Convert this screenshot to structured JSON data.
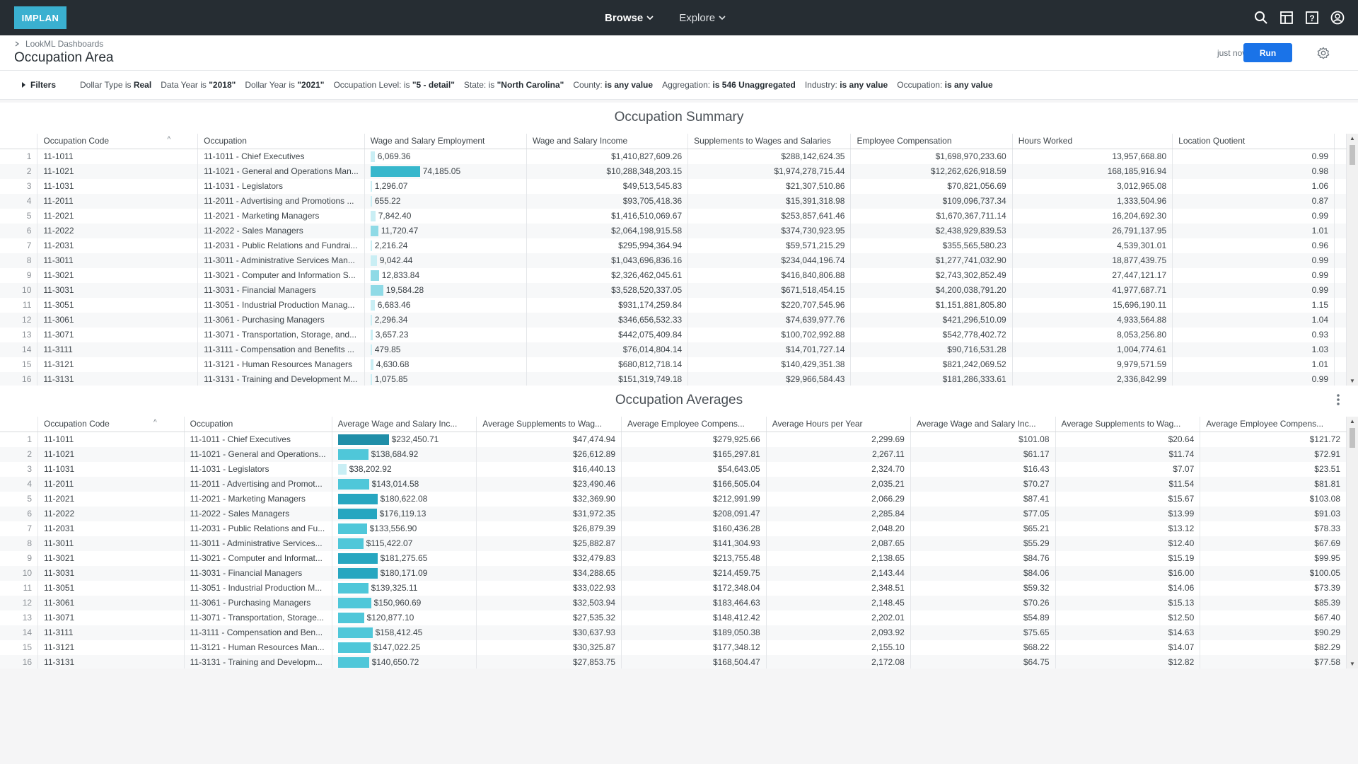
{
  "nav": {
    "logo": "IMPLAN",
    "browse": "Browse",
    "explore": "Explore"
  },
  "header": {
    "breadcrumb": "LookML Dashboards",
    "title": "Occupation Area",
    "last_run": "just now",
    "run_label": "Run"
  },
  "filters": {
    "toggle_label": "Filters",
    "items": [
      {
        "label": "Dollar Type is ",
        "value": "Real"
      },
      {
        "label": "Data Year is ",
        "value": "\"2018\""
      },
      {
        "label": "Dollar Year is ",
        "value": "\"2021\""
      },
      {
        "label": "Occupation Level: is ",
        "value": "\"5 - detail\""
      },
      {
        "label": "State: is ",
        "value": "\"North Carolina\""
      },
      {
        "label": "County: ",
        "value": "is any value"
      },
      {
        "label": "Aggregation: ",
        "value": "is 546 Unaggregated"
      },
      {
        "label": "Industry: ",
        "value": "is any value"
      },
      {
        "label": "Occupation: ",
        "value": "is any value"
      }
    ]
  },
  "summary": {
    "title": "Occupation Summary",
    "headers": [
      "Occupation Code",
      "Occupation",
      "Wage and Salary Employment",
      "Wage and Salary Income",
      "Supplements to Wages and Salaries",
      "Employee Compensation",
      "Hours Worked",
      "Location Quotient"
    ],
    "emp_max": 74185.05,
    "rows": [
      {
        "n": "1",
        "code": "11-1011",
        "occ": "11-1011 - Chief Executives",
        "emp": 6069.36,
        "emp_label": "6,069.36",
        "wsi": "$1,410,827,609.26",
        "sup": "$288,142,624.35",
        "comp": "$1,698,970,233.60",
        "hours": "13,957,668.80",
        "lq": "0.99"
      },
      {
        "n": "2",
        "code": "11-1021",
        "occ": "11-1021 - General and Operations Man...",
        "emp": 74185.05,
        "emp_label": "74,185.05",
        "wsi": "$10,288,348,203.15",
        "sup": "$1,974,278,715.44",
        "comp": "$12,262,626,918.59",
        "hours": "168,185,916.94",
        "lq": "0.98"
      },
      {
        "n": "3",
        "code": "11-1031",
        "occ": "11-1031 - Legislators",
        "emp": 1296.07,
        "emp_label": "1,296.07",
        "wsi": "$49,513,545.83",
        "sup": "$21,307,510.86",
        "comp": "$70,821,056.69",
        "hours": "3,012,965.08",
        "lq": "1.06"
      },
      {
        "n": "4",
        "code": "11-2011",
        "occ": "11-2011 - Advertising and Promotions ...",
        "emp": 655.22,
        "emp_label": "655.22",
        "wsi": "$93,705,418.36",
        "sup": "$15,391,318.98",
        "comp": "$109,096,737.34",
        "hours": "1,333,504.96",
        "lq": "0.87"
      },
      {
        "n": "5",
        "code": "11-2021",
        "occ": "11-2021 - Marketing Managers",
        "emp": 7842.4,
        "emp_label": "7,842.40",
        "wsi": "$1,416,510,069.67",
        "sup": "$253,857,641.46",
        "comp": "$1,670,367,711.14",
        "hours": "16,204,692.30",
        "lq": "0.99"
      },
      {
        "n": "6",
        "code": "11-2022",
        "occ": "11-2022 - Sales Managers",
        "emp": 11720.47,
        "emp_label": "11,720.47",
        "wsi": "$2,064,198,915.58",
        "sup": "$374,730,923.95",
        "comp": "$2,438,929,839.53",
        "hours": "26,791,137.95",
        "lq": "1.01"
      },
      {
        "n": "7",
        "code": "11-2031",
        "occ": "11-2031 - Public Relations and Fundrai...",
        "emp": 2216.24,
        "emp_label": "2,216.24",
        "wsi": "$295,994,364.94",
        "sup": "$59,571,215.29",
        "comp": "$355,565,580.23",
        "hours": "4,539,301.01",
        "lq": "0.96"
      },
      {
        "n": "8",
        "code": "11-3011",
        "occ": "11-3011 - Administrative Services Man...",
        "emp": 9042.44,
        "emp_label": "9,042.44",
        "wsi": "$1,043,696,836.16",
        "sup": "$234,044,196.74",
        "comp": "$1,277,741,032.90",
        "hours": "18,877,439.75",
        "lq": "0.99"
      },
      {
        "n": "9",
        "code": "11-3021",
        "occ": "11-3021 - Computer and Information S...",
        "emp": 12833.84,
        "emp_label": "12,833.84",
        "wsi": "$2,326,462,045.61",
        "sup": "$416,840,806.88",
        "comp": "$2,743,302,852.49",
        "hours": "27,447,121.17",
        "lq": "0.99"
      },
      {
        "n": "10",
        "code": "11-3031",
        "occ": "11-3031 - Financial Managers",
        "emp": 19584.28,
        "emp_label": "19,584.28",
        "wsi": "$3,528,520,337.05",
        "sup": "$671,518,454.15",
        "comp": "$4,200,038,791.20",
        "hours": "41,977,687.71",
        "lq": "0.99"
      },
      {
        "n": "11",
        "code": "11-3051",
        "occ": "11-3051 - Industrial Production Manag...",
        "emp": 6683.46,
        "emp_label": "6,683.46",
        "wsi": "$931,174,259.84",
        "sup": "$220,707,545.96",
        "comp": "$1,151,881,805.80",
        "hours": "15,696,190.11",
        "lq": "1.15"
      },
      {
        "n": "12",
        "code": "11-3061",
        "occ": "11-3061 - Purchasing Managers",
        "emp": 2296.34,
        "emp_label": "2,296.34",
        "wsi": "$346,656,532.33",
        "sup": "$74,639,977.76",
        "comp": "$421,296,510.09",
        "hours": "4,933,564.88",
        "lq": "1.04"
      },
      {
        "n": "13",
        "code": "11-3071",
        "occ": "11-3071 - Transportation, Storage, and...",
        "emp": 3657.23,
        "emp_label": "3,657.23",
        "wsi": "$442,075,409.84",
        "sup": "$100,702,992.88",
        "comp": "$542,778,402.72",
        "hours": "8,053,256.80",
        "lq": "0.93"
      },
      {
        "n": "14",
        "code": "11-3111",
        "occ": "11-3111 - Compensation and Benefits ...",
        "emp": 479.85,
        "emp_label": "479.85",
        "wsi": "$76,014,804.14",
        "sup": "$14,701,727.14",
        "comp": "$90,716,531.28",
        "hours": "1,004,774.61",
        "lq": "1.03"
      },
      {
        "n": "15",
        "code": "11-3121",
        "occ": "11-3121 - Human Resources Managers",
        "emp": 4630.68,
        "emp_label": "4,630.68",
        "wsi": "$680,812,718.14",
        "sup": "$140,429,351.38",
        "comp": "$821,242,069.52",
        "hours": "9,979,571.59",
        "lq": "1.01"
      },
      {
        "n": "16",
        "code": "11-3131",
        "occ": "11-3131 - Training and Development M...",
        "emp": 1075.85,
        "emp_label": "1,075.85",
        "wsi": "$151,319,749.18",
        "sup": "$29,966,584.43",
        "comp": "$181,286,333.61",
        "hours": "2,336,842.99",
        "lq": "0.99"
      }
    ]
  },
  "averages": {
    "title": "Occupation Averages",
    "headers": [
      "Occupation Code",
      "Occupation",
      "Average Wage and Salary Inc...",
      "Average Supplements to Wag...",
      "Average Employee Compens...",
      "Average Hours per Year",
      "Average Wage and Salary Inc...",
      "Average Supplements to Wag...",
      "Average Employee Compens..."
    ],
    "wage_max": 232450.71,
    "rows": [
      {
        "n": "1",
        "code": "11-1011",
        "occ": "11-1011 - Chief Executives",
        "wage": 232450.71,
        "wage_label": "$232,450.71",
        "sup": "$47,474.94",
        "comp": "$279,925.66",
        "hours": "2,299.69",
        "hw": "$101.08",
        "hs": "$20.64",
        "hc": "$121.72"
      },
      {
        "n": "2",
        "code": "11-1021",
        "occ": "11-1021 - General and Operations...",
        "wage": 138684.92,
        "wage_label": "$138,684.92",
        "sup": "$26,612.89",
        "comp": "$165,297.81",
        "hours": "2,267.11",
        "hw": "$61.17",
        "hs": "$11.74",
        "hc": "$72.91"
      },
      {
        "n": "3",
        "code": "11-1031",
        "occ": "11-1031 - Legislators",
        "wage": 38202.92,
        "wage_label": "$38,202.92",
        "sup": "$16,440.13",
        "comp": "$54,643.05",
        "hours": "2,324.70",
        "hw": "$16.43",
        "hs": "$7.07",
        "hc": "$23.51"
      },
      {
        "n": "4",
        "code": "11-2011",
        "occ": "11-2011 - Advertising and Promot...",
        "wage": 143014.58,
        "wage_label": "$143,014.58",
        "sup": "$23,490.46",
        "comp": "$166,505.04",
        "hours": "2,035.21",
        "hw": "$70.27",
        "hs": "$11.54",
        "hc": "$81.81"
      },
      {
        "n": "5",
        "code": "11-2021",
        "occ": "11-2021 - Marketing Managers",
        "wage": 180622.08,
        "wage_label": "$180,622.08",
        "sup": "$32,369.90",
        "comp": "$212,991.99",
        "hours": "2,066.29",
        "hw": "$87.41",
        "hs": "$15.67",
        "hc": "$103.08"
      },
      {
        "n": "6",
        "code": "11-2022",
        "occ": "11-2022 - Sales Managers",
        "wage": 176119.13,
        "wage_label": "$176,119.13",
        "sup": "$31,972.35",
        "comp": "$208,091.47",
        "hours": "2,285.84",
        "hw": "$77.05",
        "hs": "$13.99",
        "hc": "$91.03"
      },
      {
        "n": "7",
        "code": "11-2031",
        "occ": "11-2031 - Public Relations and Fu...",
        "wage": 133556.9,
        "wage_label": "$133,556.90",
        "sup": "$26,879.39",
        "comp": "$160,436.28",
        "hours": "2,048.20",
        "hw": "$65.21",
        "hs": "$13.12",
        "hc": "$78.33"
      },
      {
        "n": "8",
        "code": "11-3011",
        "occ": "11-3011 - Administrative Services...",
        "wage": 115422.07,
        "wage_label": "$115,422.07",
        "sup": "$25,882.87",
        "comp": "$141,304.93",
        "hours": "2,087.65",
        "hw": "$55.29",
        "hs": "$12.40",
        "hc": "$67.69"
      },
      {
        "n": "9",
        "code": "11-3021",
        "occ": "11-3021 - Computer and Informat...",
        "wage": 181275.65,
        "wage_label": "$181,275.65",
        "sup": "$32,479.83",
        "comp": "$213,755.48",
        "hours": "2,138.65",
        "hw": "$84.76",
        "hs": "$15.19",
        "hc": "$99.95"
      },
      {
        "n": "10",
        "code": "11-3031",
        "occ": "11-3031 - Financial Managers",
        "wage": 180171.09,
        "wage_label": "$180,171.09",
        "sup": "$34,288.65",
        "comp": "$214,459.75",
        "hours": "2,143.44",
        "hw": "$84.06",
        "hs": "$16.00",
        "hc": "$100.05"
      },
      {
        "n": "11",
        "code": "11-3051",
        "occ": "11-3051 - Industrial Production M...",
        "wage": 139325.11,
        "wage_label": "$139,325.11",
        "sup": "$33,022.93",
        "comp": "$172,348.04",
        "hours": "2,348.51",
        "hw": "$59.32",
        "hs": "$14.06",
        "hc": "$73.39"
      },
      {
        "n": "12",
        "code": "11-3061",
        "occ": "11-3061 - Purchasing Managers",
        "wage": 150960.69,
        "wage_label": "$150,960.69",
        "sup": "$32,503.94",
        "comp": "$183,464.63",
        "hours": "2,148.45",
        "hw": "$70.26",
        "hs": "$15.13",
        "hc": "$85.39"
      },
      {
        "n": "13",
        "code": "11-3071",
        "occ": "11-3071 - Transportation, Storage...",
        "wage": 120877.1,
        "wage_label": "$120,877.10",
        "sup": "$27,535.32",
        "comp": "$148,412.42",
        "hours": "2,202.01",
        "hw": "$54.89",
        "hs": "$12.50",
        "hc": "$67.40"
      },
      {
        "n": "14",
        "code": "11-3111",
        "occ": "11-3111 - Compensation and Ben...",
        "wage": 158412.45,
        "wage_label": "$158,412.45",
        "sup": "$30,637.93",
        "comp": "$189,050.38",
        "hours": "2,093.92",
        "hw": "$75.65",
        "hs": "$14.63",
        "hc": "$90.29"
      },
      {
        "n": "15",
        "code": "11-3121",
        "occ": "11-3121 - Human Resources Man...",
        "wage": 147022.25,
        "wage_label": "$147,022.25",
        "sup": "$30,325.87",
        "comp": "$177,348.12",
        "hours": "2,155.10",
        "hw": "$68.22",
        "hs": "$14.07",
        "hc": "$82.29"
      },
      {
        "n": "16",
        "code": "11-3131",
        "occ": "11-3131 - Training and Developm...",
        "wage": 140650.72,
        "wage_label": "$140,650.72",
        "sup": "$27,853.75",
        "comp": "$168,504.47",
        "hours": "2,172.08",
        "hw": "$64.75",
        "hs": "$12.82",
        "hc": "$77.58"
      }
    ]
  }
}
